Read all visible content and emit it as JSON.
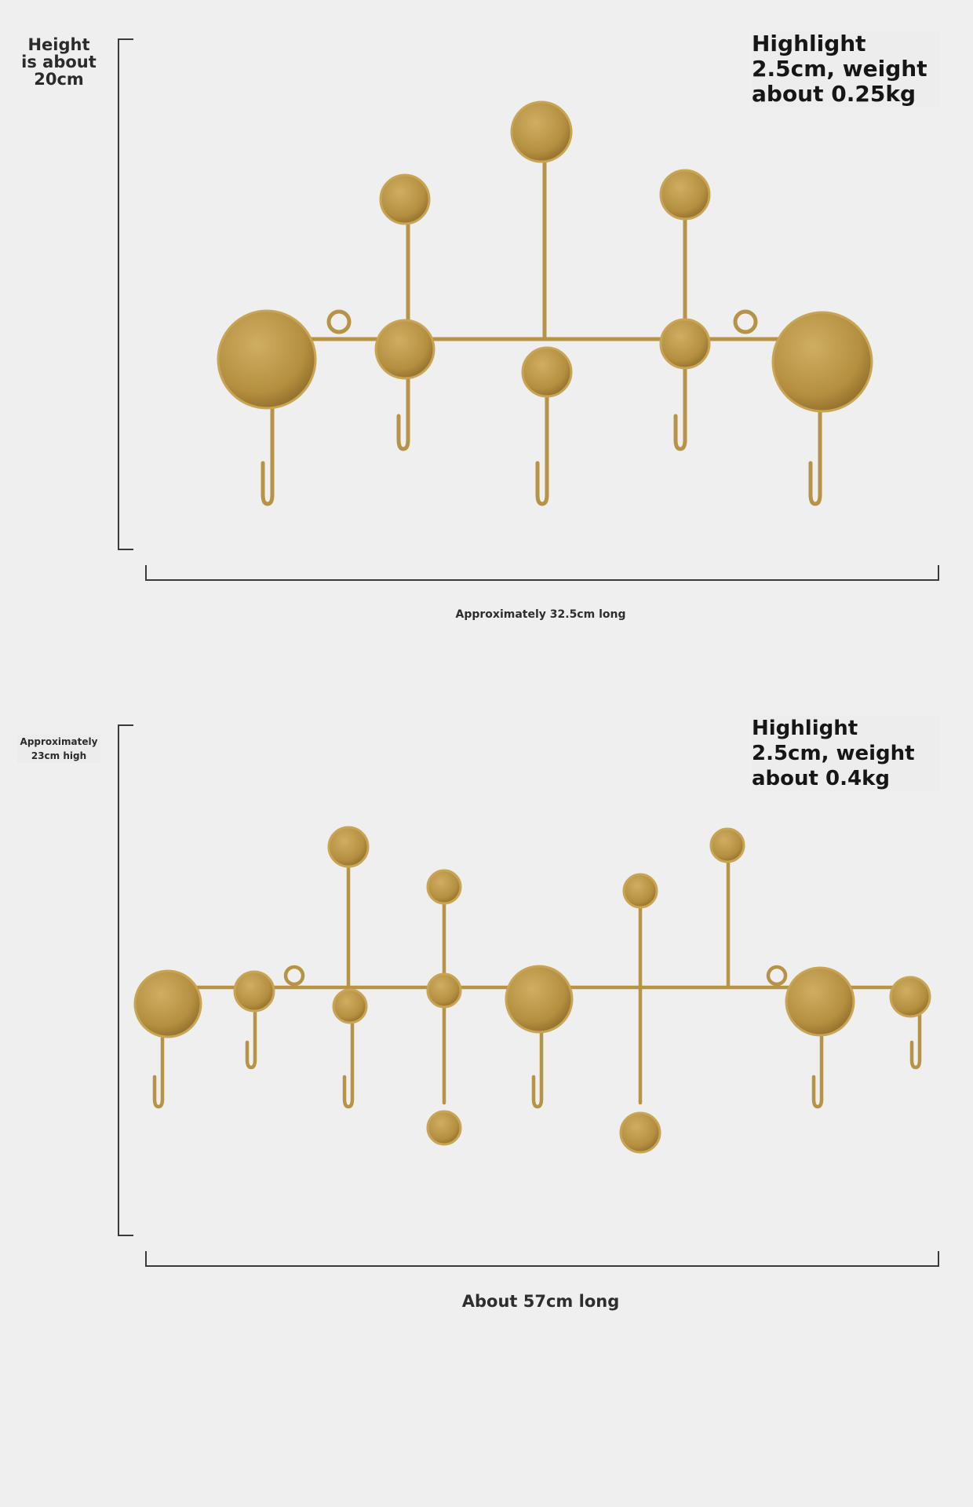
{
  "panels": [
    {
      "height_label": "Height\nis about\n20cm",
      "spec_label": "Highlight 2.5cm, weight about 0.25kg",
      "length_label": "Approximately 32.5cm long"
    },
    {
      "height_label": "Approximately\n23cm high",
      "spec_label": "Highlight 2.5cm, weight about 0.4kg",
      "length_label": "About 57cm long"
    }
  ],
  "colors": {
    "background": "#efefef",
    "gold": "#b89547",
    "gold_light": "#c9a85a",
    "gold_dark": "#9c7a32"
  }
}
